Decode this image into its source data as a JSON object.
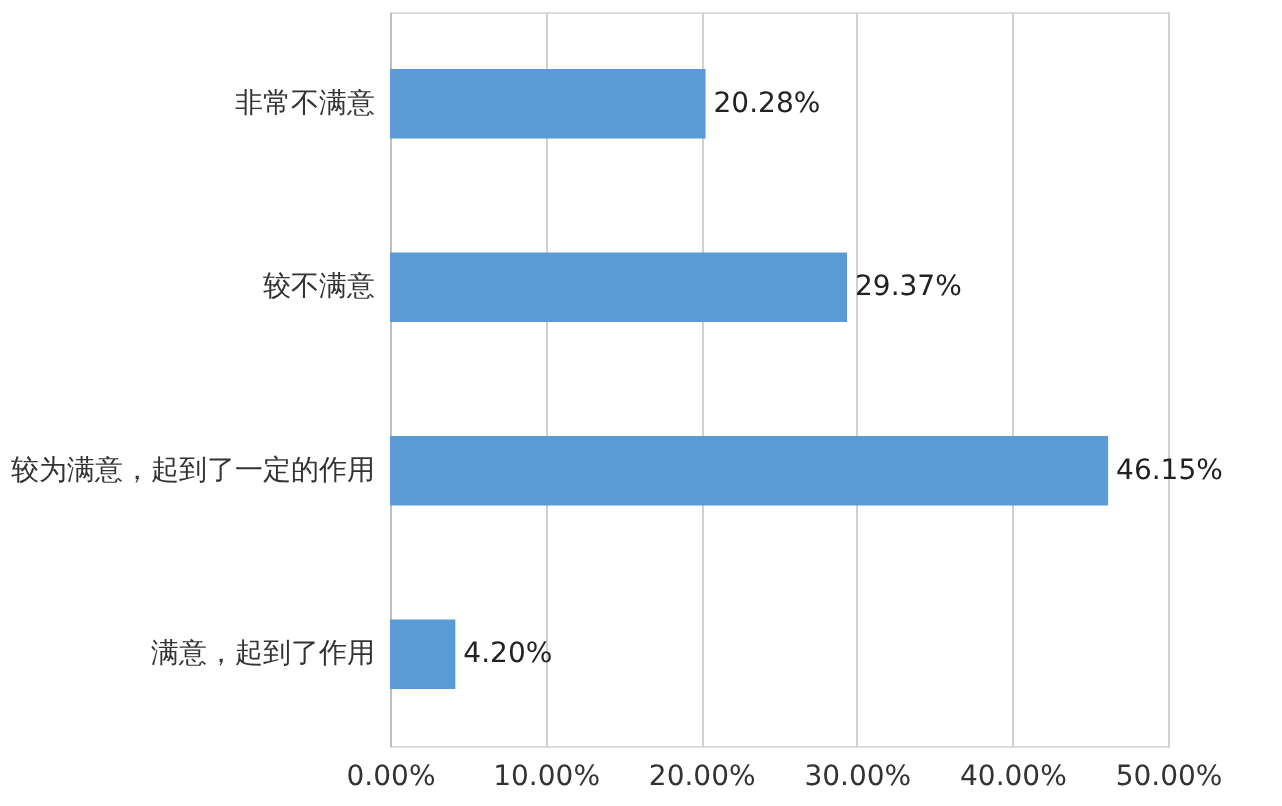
{
  "chart_data": {
    "type": "bar",
    "orientation": "horizontal",
    "categories": [
      "非常不满意",
      "较不满意",
      "较为满意，起到了一定的作用",
      "满意，起到了作用"
    ],
    "values": [
      20.28,
      29.37,
      46.15,
      4.2
    ],
    "value_labels": [
      "20.28%",
      "29.37%",
      "46.15%",
      "4.20%"
    ],
    "color": "#5b9bd5",
    "xlim": [
      0,
      50
    ],
    "xticks": [
      {
        "value": 0,
        "label": "0.00%"
      },
      {
        "value": 10,
        "label": "10.00%"
      },
      {
        "value": 20,
        "label": "20.00%"
      },
      {
        "value": 30,
        "label": "30.00%"
      },
      {
        "value": 40,
        "label": "40.00%"
      },
      {
        "value": 50,
        "label": "50.00%"
      }
    ],
    "grid": "x"
  }
}
